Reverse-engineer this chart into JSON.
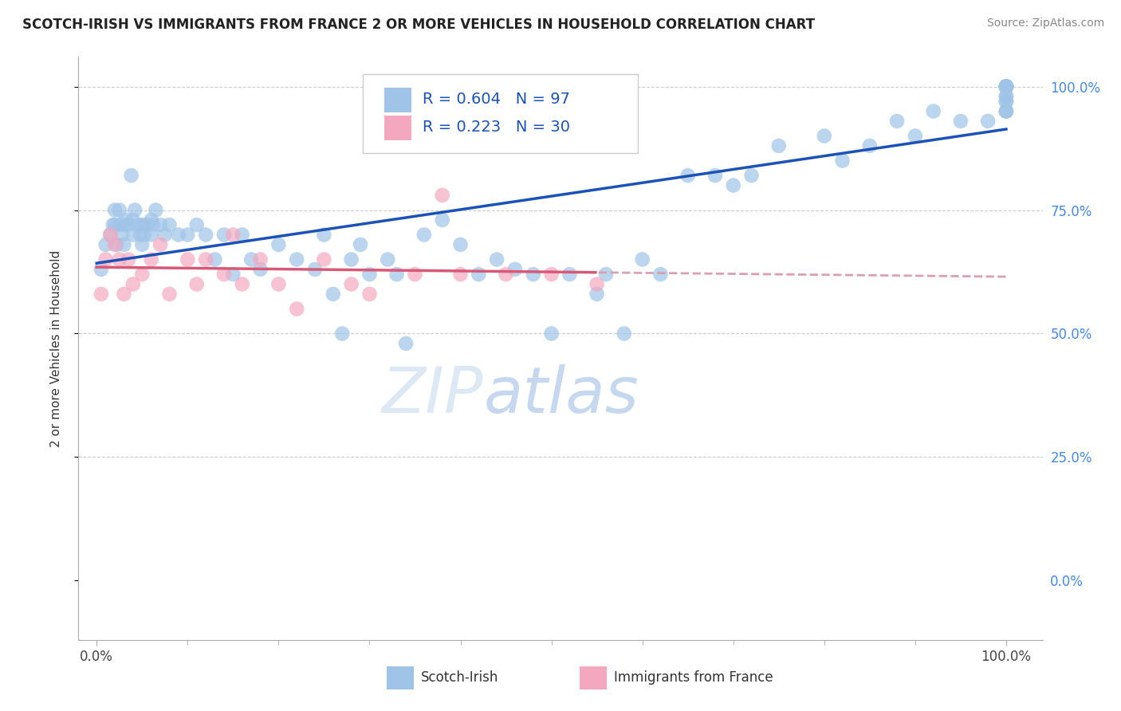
{
  "title": "SCOTCH-IRISH VS IMMIGRANTS FROM FRANCE 2 OR MORE VEHICLES IN HOUSEHOLD CORRELATION CHART",
  "source": "Source: ZipAtlas.com",
  "ylabel": "2 or more Vehicles in Household",
  "R_blue": 0.604,
  "N_blue": 97,
  "R_pink": 0.223,
  "N_pink": 30,
  "blue_color": "#a0c4e8",
  "pink_color": "#f4a8c0",
  "trend_blue": "#1a52b8",
  "trend_pink": "#d85878",
  "trend_dashed_color": "#d8a0b0",
  "grid_color": "#cccccc",
  "right_tick_color": "#4488ee",
  "blue_x": [
    0.5,
    1.0,
    1.5,
    1.8,
    2.0,
    2.0,
    2.2,
    2.5,
    2.5,
    2.8,
    3.0,
    3.0,
    3.2,
    3.5,
    3.8,
    4.0,
    4.0,
    4.2,
    4.5,
    4.8,
    5.0,
    5.0,
    5.2,
    5.5,
    6.0,
    6.0,
    6.2,
    6.5,
    7.0,
    7.5,
    8.0,
    9.0,
    10.0,
    11.0,
    12.0,
    13.0,
    14.0,
    15.0,
    16.0,
    17.0,
    18.0,
    20.0,
    22.0,
    24.0,
    25.0,
    26.0,
    27.0,
    28.0,
    29.0,
    30.0,
    32.0,
    33.0,
    34.0,
    36.0,
    38.0,
    40.0,
    42.0,
    44.0,
    46.0,
    48.0,
    50.0,
    52.0,
    55.0,
    56.0,
    58.0,
    60.0,
    62.0,
    65.0,
    68.0,
    70.0,
    72.0,
    75.0,
    80.0,
    82.0,
    85.0,
    88.0,
    90.0,
    92.0,
    95.0,
    98.0,
    100.0,
    100.0,
    100.0,
    100.0,
    100.0,
    100.0,
    100.0,
    100.0,
    100.0,
    100.0,
    100.0,
    100.0,
    100.0,
    100.0,
    100.0,
    100.0,
    100.0
  ],
  "blue_y": [
    63,
    68,
    70,
    72,
    72,
    75,
    68,
    72,
    75,
    70,
    68,
    72,
    73,
    72,
    82,
    70,
    73,
    75,
    72,
    70,
    68,
    72,
    70,
    72,
    70,
    73,
    72,
    75,
    72,
    70,
    72,
    70,
    70,
    72,
    70,
    65,
    70,
    62,
    70,
    65,
    63,
    68,
    65,
    63,
    70,
    58,
    50,
    65,
    68,
    62,
    65,
    62,
    48,
    70,
    73,
    68,
    62,
    65,
    63,
    62,
    50,
    62,
    58,
    62,
    50,
    65,
    62,
    82,
    82,
    80,
    82,
    88,
    90,
    85,
    88,
    93,
    90,
    95,
    93,
    93,
    95,
    95,
    97,
    95,
    98,
    97,
    100,
    100,
    98,
    100,
    100,
    100,
    100,
    100,
    100,
    100,
    100
  ],
  "pink_x": [
    0.5,
    1.0,
    1.5,
    2.0,
    2.5,
    3.0,
    3.5,
    4.0,
    5.0,
    6.0,
    7.0,
    8.0,
    10.0,
    11.0,
    12.0,
    14.0,
    15.0,
    16.0,
    18.0,
    20.0,
    22.0,
    25.0,
    28.0,
    30.0,
    35.0,
    38.0,
    40.0,
    45.0,
    50.0,
    55.0
  ],
  "pink_y": [
    58,
    65,
    70,
    68,
    65,
    58,
    65,
    60,
    62,
    65,
    68,
    58,
    65,
    60,
    65,
    62,
    70,
    60,
    65,
    60,
    55,
    65,
    60,
    58,
    62,
    78,
    62,
    62,
    62,
    60
  ],
  "figsize": [
    14.06,
    8.92
  ],
  "dpi": 100
}
